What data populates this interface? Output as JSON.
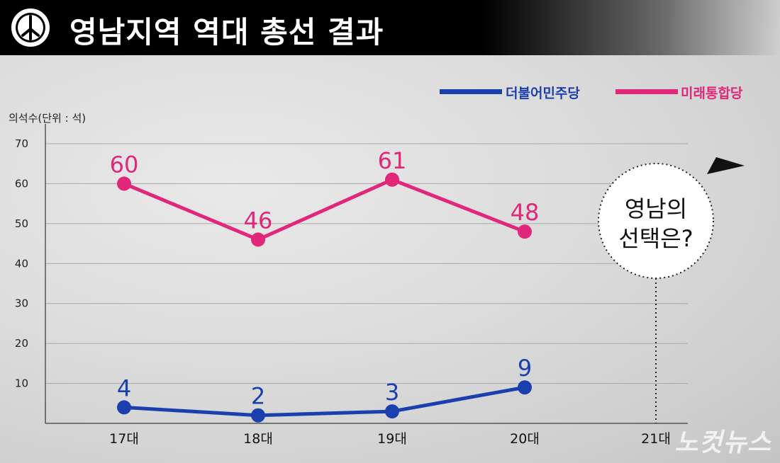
{
  "header": {
    "title": "영남지역 역대 총선 결과"
  },
  "legend": [
    {
      "name": "더불어민주당",
      "color": "#1c3fae"
    },
    {
      "name": "미래통합당",
      "color": "#e0277a"
    }
  ],
  "unit_label": "의석수(단위 : 석)",
  "callout": {
    "line1": "영남의",
    "line2": "선택은?"
  },
  "watermark": "노컷뉴스",
  "chart_data": {
    "type": "line",
    "categories": [
      "17대",
      "18대",
      "19대",
      "20대",
      "21대"
    ],
    "ylim": [
      0,
      70
    ],
    "yticks": [
      10,
      20,
      30,
      40,
      50,
      60,
      70
    ],
    "grid": true,
    "legend_position": "top-right",
    "series": [
      {
        "name": "더불어민주당",
        "color": "#1c3fae",
        "values": [
          4,
          2,
          3,
          9,
          null
        ],
        "labels": [
          "4",
          "2",
          "3",
          "9",
          ""
        ]
      },
      {
        "name": "미래통합당",
        "color": "#e0277a",
        "values": [
          60,
          46,
          61,
          48,
          null
        ],
        "labels": [
          "60",
          "46",
          "61",
          "48",
          ""
        ]
      }
    ]
  }
}
